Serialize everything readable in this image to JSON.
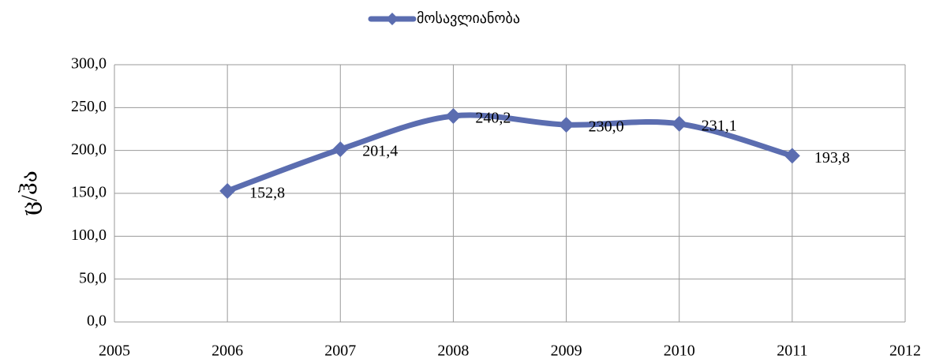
{
  "chart_data": {
    "type": "line",
    "y_label": "ც/ჰა",
    "x": [
      2006,
      2007,
      2008,
      2009,
      2010,
      2011
    ],
    "series": [
      {
        "name": "მოსავლიანობა",
        "color": "#5b6db0",
        "values": [
          152.8,
          201.4,
          240.2,
          230.0,
          231.1,
          193.8
        ],
        "value_labels": [
          "152,8",
          "201,4",
          "240,2",
          "230,0",
          "231,1",
          "193,8"
        ]
      }
    ],
    "xlim": [
      2005,
      2012
    ],
    "xticks": [
      2005,
      2006,
      2007,
      2008,
      2009,
      2010,
      2011,
      2012
    ],
    "ylim": [
      0,
      300
    ],
    "yticks": [
      {
        "value": 0,
        "label": "0,0"
      },
      {
        "value": 50,
        "label": "50,0"
      },
      {
        "value": 100,
        "label": "100,0"
      },
      {
        "value": 150,
        "label": "150,0"
      },
      {
        "value": 200,
        "label": "200,0"
      },
      {
        "value": 250,
        "label": "250,0"
      },
      {
        "value": 300,
        "label": "300,0"
      }
    ],
    "grid": true,
    "legend": "top",
    "smooth": true
  }
}
